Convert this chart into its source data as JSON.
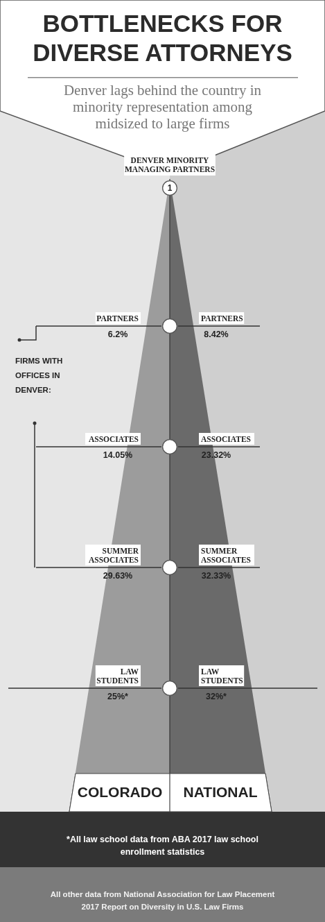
{
  "chart_data": {
    "type": "other",
    "title": "BOTTLENECKS FOR DIVERSE ATTORNEYS",
    "subtitle": "Denver lags behind the country in minority representation among midsized to large firms",
    "categories": [
      "PARTNERS",
      "ASSOCIATES",
      "SUMMER ASSOCIATES",
      "LAW STUDENTS"
    ],
    "series": [
      {
        "name": "COLORADO",
        "color": "#9c9c9c",
        "values": [
          6.2,
          14.05,
          29.63,
          25
        ],
        "value_labels": [
          "6.2%",
          "14.05%",
          "29.63%",
          "25%*"
        ]
      },
      {
        "name": "NATIONAL",
        "color": "#6a6a6a",
        "values": [
          8.42,
          23.32,
          32.33,
          32
        ],
        "value_labels": [
          "8.42%",
          "23.32%",
          "32.33%",
          "32%*"
        ]
      }
    ],
    "legend": "bottom",
    "annotations": [
      "DENVER MINORITY MANAGING PARTNERS",
      "1",
      "FIRMS WITH OFFICES IN DENVER:",
      "*All law school data from ABA 2017 law school enrollment statistics",
      "All other data from National Association for Law Placement 2017 Report on Diversity in U.S. Law Firms"
    ]
  }
}
